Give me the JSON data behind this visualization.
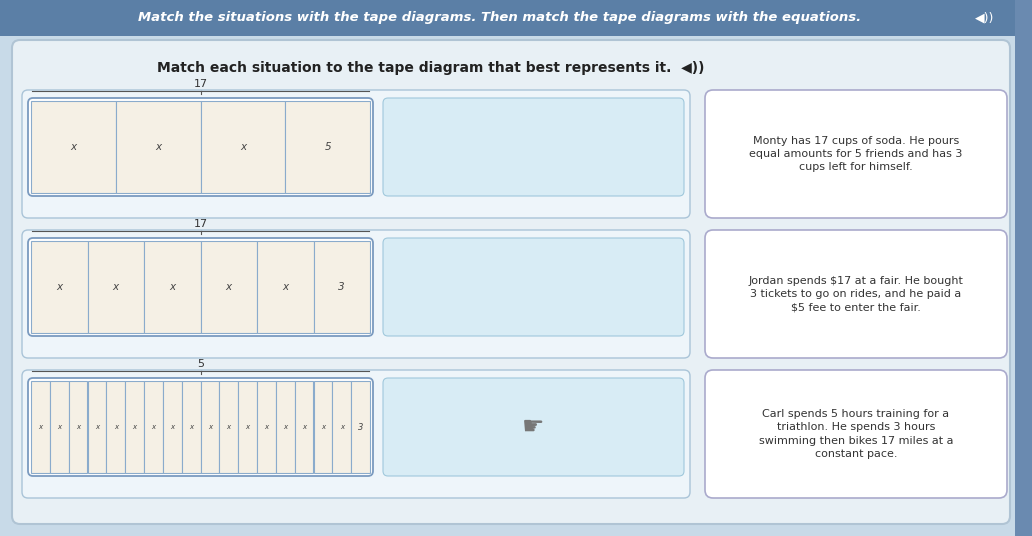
{
  "title_bar": "Match the situations with the tape diagrams. Then match the tape diagrams with the equations.",
  "subtitle": "Match each situation to the tape diagram that best represents it.",
  "bg_color": "#c8dae8",
  "title_bar_color": "#5b7fa6",
  "title_text_color": "#ffffff",
  "panel_bg": "#e8f0f5",
  "panel_border": "#b0c4d4",
  "row_outer_bg": "#ddeaf3",
  "row_outer_border": "#a0b8cc",
  "tape_outer_bg": "#ffffff",
  "tape_outer_border": "#7a9abf",
  "tape_seg_bg": "#f5f0e5",
  "tape_seg_border": "#8aabcc",
  "drop_bg": "#d8ecf5",
  "drop_border": "#a0c8dc",
  "sit_bg": "#ffffff",
  "sit_border": "#aaaacc",
  "situations": [
    "Monty has 17 cups of soda. He pours\nequal amounts for 5 friends and has 3\ncups left for himself.",
    "Jordan spends $17 at a fair. He bought\n3 tickets to go on rides, and he paid a\n$5 fee to enter the fair.",
    "Carl spends 5 hours training for a\ntriathlon. He spends 3 hours\nswimming then bikes 17 miles at a\nconstant pace."
  ],
  "row_configs": [
    {
      "brace_label": "17",
      "equal_n": 3,
      "equal_label": "x",
      "last_label": "5"
    },
    {
      "brace_label": "17",
      "equal_n": 5,
      "equal_label": "x",
      "last_label": "3"
    },
    {
      "brace_label": "5",
      "equal_n": 17,
      "equal_label": "x",
      "last_label": "3"
    }
  ],
  "scrollbar_color": "#6a8ab0"
}
